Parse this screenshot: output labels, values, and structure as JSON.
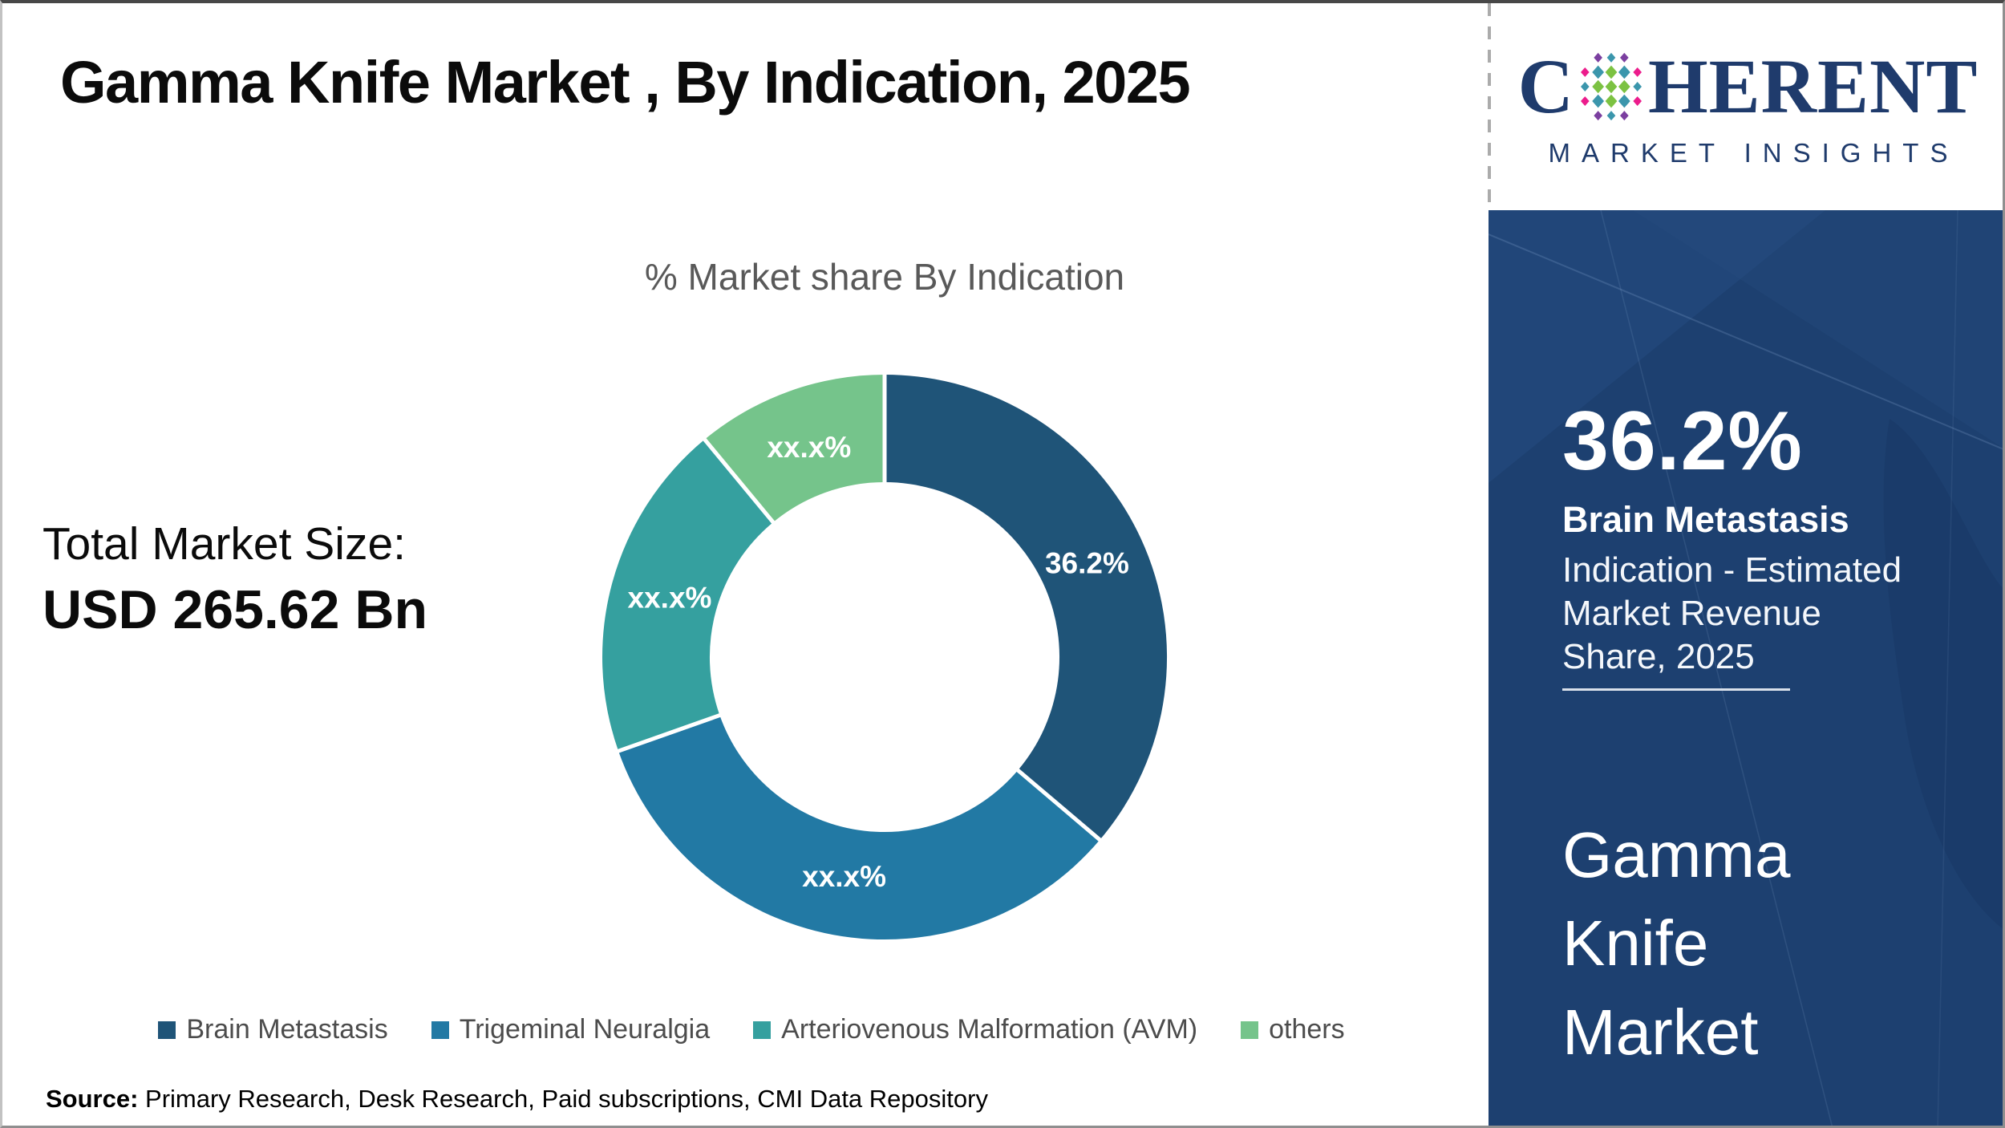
{
  "page": {
    "title": "Gamma Knife Market , By Indication, 2025",
    "source_label": "Source:",
    "source_text": " Primary Research, Desk Research, Paid subscriptions, CMI Data Repository"
  },
  "logo": {
    "brand_first_letter": "C",
    "brand_rest": "HERENT",
    "brand_sub": "MARKET INSIGHTS",
    "colors": {
      "navy": "#1f3b6c",
      "green": "#7cc242",
      "teal": "#3b96ac",
      "purple": "#7b3fa0",
      "pink": "#ec1c8c"
    }
  },
  "left_panel": {
    "total_label": "Total Market Size:",
    "total_value": "USD 265.62 Bn"
  },
  "chart_data": {
    "type": "pie",
    "subtype": "donut",
    "title": "% Market share By Indication",
    "categories": [
      "Brain Metastasis",
      "Trigeminal Neuralgia",
      "Arteriovenous Malformation (AVM)",
      "others"
    ],
    "values": [
      36.2,
      33.4,
      19.4,
      11.0
    ],
    "values_note": "only 36.2% printed on chart; other slice values masked as xx.x% and estimated from arc angles",
    "labels": [
      "36.2%",
      "xx.x%",
      "xx.x%",
      "xx.x%"
    ],
    "colors": [
      "#1f5478",
      "#2279a4",
      "#35a09f",
      "#75c48b"
    ],
    "start_angle_deg": 0,
    "direction": "clockwise",
    "inner_radius_ratio": 0.62,
    "legend_position": "bottom",
    "separator_color": "#ffffff"
  },
  "sidebar": {
    "bg_color": "#1d4070",
    "stat_value": "36.2%",
    "stat_label": "Brain Metastasis",
    "stat_desc": "Indication - Estimated Market Revenue Share, 2025",
    "panel_title": "Gamma Knife Market"
  }
}
